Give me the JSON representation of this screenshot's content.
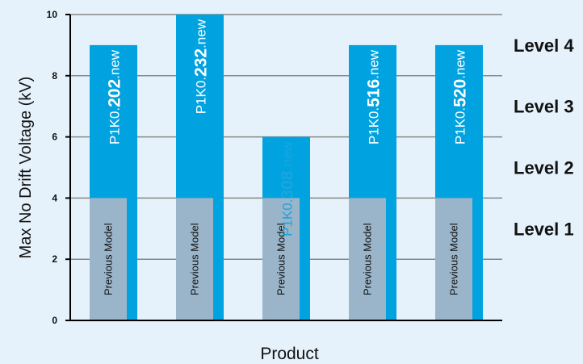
{
  "chart_data": {
    "type": "bar",
    "xlabel": "Product",
    "ylabel": "Max No Drift Voltage (kV)",
    "ylim": [
      0,
      10
    ],
    "yticks": [
      0,
      2,
      4,
      6,
      8,
      10
    ],
    "grid": true,
    "categories": [
      "P1K0.202.new",
      "P1K0.232.new",
      "P1K0.308.new",
      "P1K0.516.new",
      "P1K0.520.new"
    ],
    "bars": [
      {
        "prefix": "P1K0.",
        "code": "202",
        "suffix": ".new",
        "value": 9.0,
        "label_color": "#ffffff"
      },
      {
        "prefix": "P1K0.",
        "code": "232",
        "suffix": ".new",
        "value": 10.0,
        "label_color": "#ffffff"
      },
      {
        "prefix": "P1K0.",
        "code": "308",
        "suffix": ".new",
        "value": 6.0,
        "label_color": "#1aa5e0"
      },
      {
        "prefix": "P1K0.",
        "code": "516",
        "suffix": ".new",
        "value": 9.0,
        "label_color": "#ffffff"
      },
      {
        "prefix": "P1K0.",
        "code": "520",
        "suffix": ".new",
        "value": 9.0,
        "label_color": "#ffffff"
      }
    ],
    "previous_model": {
      "label": "Previous Model",
      "value": 4.0
    },
    "levels": [
      {
        "label": "Level 4",
        "value": 9.0
      },
      {
        "label": "Level 3",
        "value": 7.0
      },
      {
        "label": "Level 2",
        "value": 5.0
      },
      {
        "label": "Level 1",
        "value": 3.0
      }
    ],
    "colors": {
      "new_bar": "#00a3e0",
      "previous_bar": "#9ab5c9",
      "grid": "#888888",
      "axis": "#000000"
    }
  }
}
